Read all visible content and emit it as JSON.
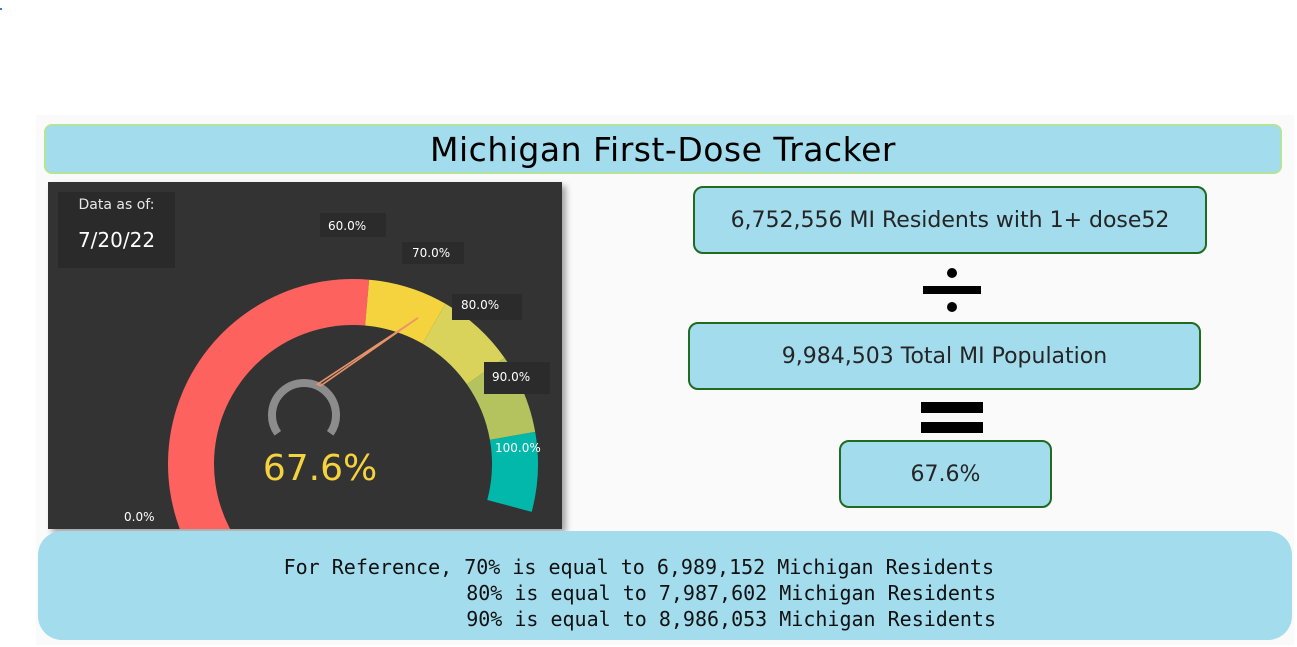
{
  "title": "Michigan First-Dose Tracker",
  "as_of": {
    "label": "Data as of:",
    "date": "7/20/22"
  },
  "gauge": {
    "value_text": "67.6%",
    "value_fraction": 0.676,
    "tick_labels": [
      "0.0%",
      "60.0%",
      "70.0%",
      "80.0%",
      "90.0%",
      "100.0%"
    ],
    "bands": [
      {
        "from": 0.0,
        "to": 0.6,
        "color": "#fd625e"
      },
      {
        "from": 0.6,
        "to": 0.7,
        "color": "#f5d33f"
      },
      {
        "from": 0.7,
        "to": 0.8,
        "color": "#d9d35c"
      },
      {
        "from": 0.8,
        "to": 0.9,
        "color": "#b4c35e"
      },
      {
        "from": 0.9,
        "to": 1.0,
        "color": "#01b8aa"
      }
    ],
    "needle_color": "#e9936b",
    "value_color": "#f5d33e"
  },
  "calculation": {
    "numerator": "6,752,556 MI Residents with 1+ dose52",
    "denominator": "9,984,503 Total MI Population",
    "result": "67.6%",
    "divide_icon": "divide-icon",
    "equals_icon": "equals-icon"
  },
  "reference": {
    "line1": "For Reference, 70% is equal to 6,989,152 Michigan Residents",
    "line2": "80% is equal to 7,987,602 Michigan Residents",
    "line3": "90% is equal to 8,986,053 Michigan Residents"
  },
  "colors": {
    "accent_light_blue": "#a2dced",
    "box_border_green": "#1f6b1f",
    "panel_dark": "#333333"
  }
}
